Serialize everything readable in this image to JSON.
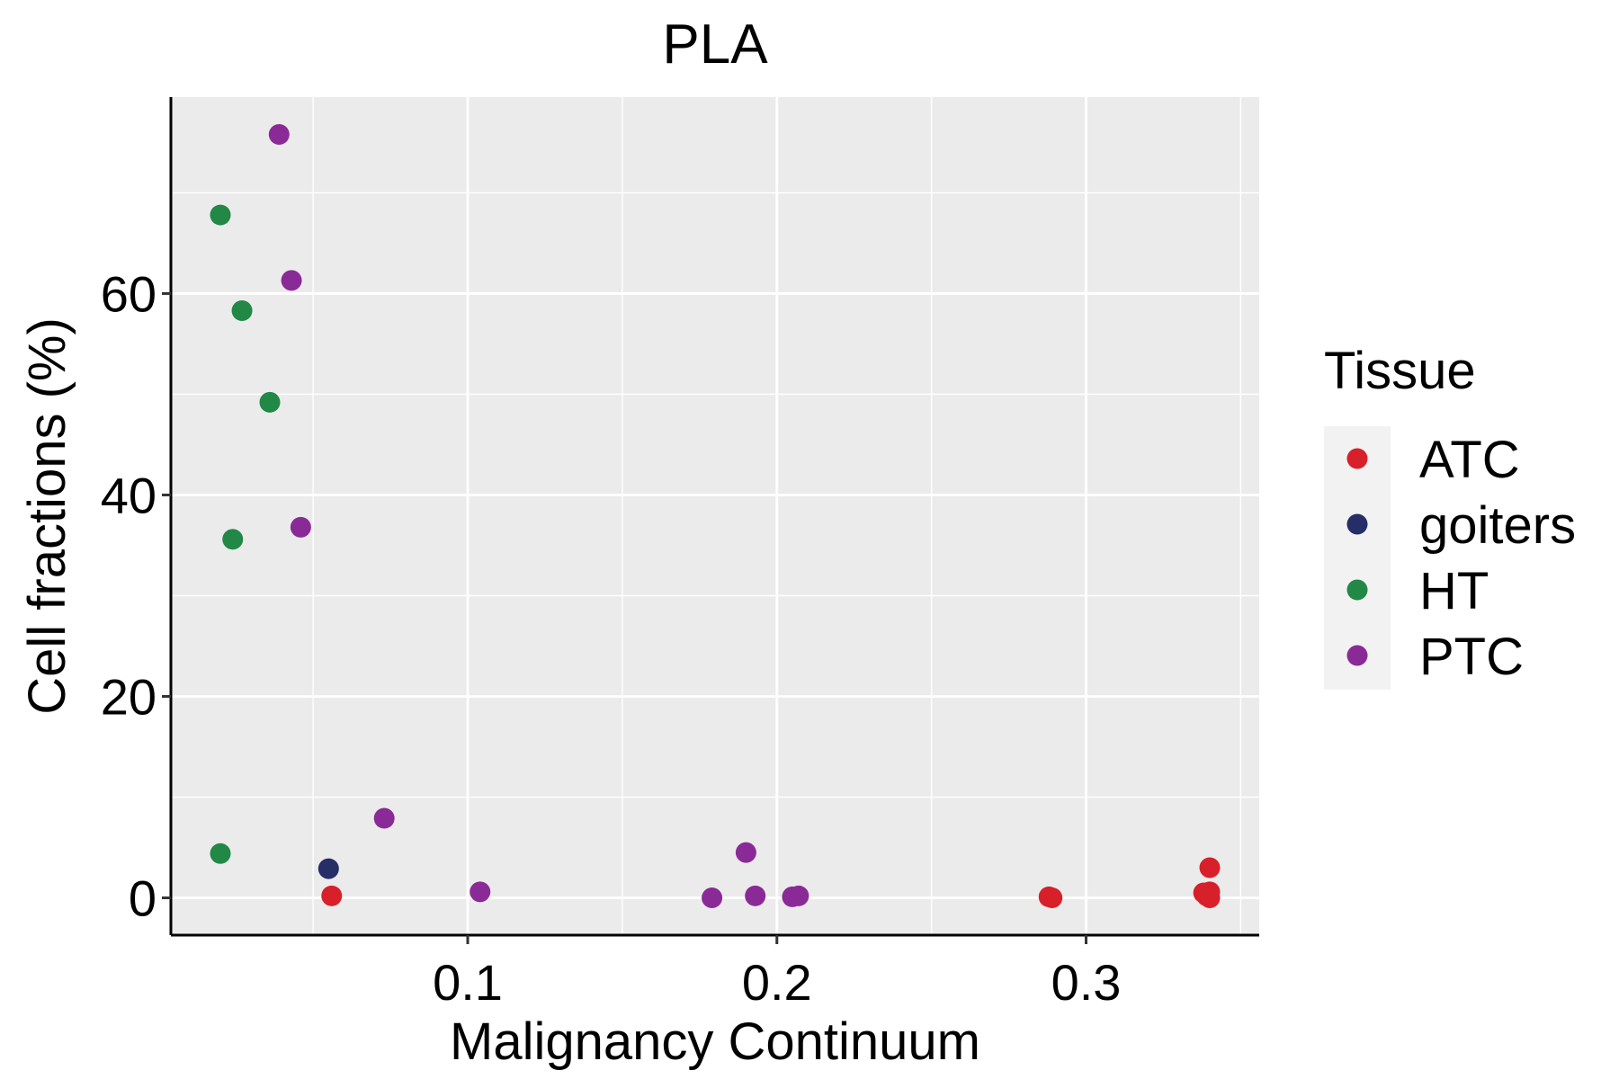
{
  "chart_data": {
    "type": "scatter",
    "title": "PLA",
    "xlabel": "Malignancy Continuum",
    "ylabel": "Cell fractions (%)",
    "xlim": [
      0.004,
      0.356
    ],
    "ylim": [
      -3.7,
      79.5
    ],
    "x_major_ticks": [
      0.1,
      0.2,
      0.3
    ],
    "x_tick_labels": [
      "0.1",
      "0.2",
      "0.3"
    ],
    "x_minor_ticks": [
      0.05,
      0.15,
      0.25,
      0.35
    ],
    "y_major_ticks": [
      0,
      20,
      40,
      60
    ],
    "y_tick_labels": [
      "0",
      "20",
      "40",
      "60"
    ],
    "y_minor_ticks": [
      10,
      30,
      50,
      70
    ],
    "grid": true,
    "legend": {
      "title": "Tissue",
      "position": "right",
      "entries": [
        "ATC",
        "goiters",
        "HT",
        "PTC"
      ]
    },
    "colors": {
      "ATC": "#D7202A",
      "goiters": "#252E66",
      "HT": "#218846",
      "PTC": "#8A2A97",
      "panel_bg": "#EBEBEB",
      "grid": "#FFFFFF",
      "axis": "#000000"
    },
    "series": [
      {
        "name": "ATC",
        "points": [
          {
            "x": 0.056,
            "y": 0.2
          },
          {
            "x": 0.288,
            "y": 0.1
          },
          {
            "x": 0.289,
            "y": 0.0
          },
          {
            "x": 0.34,
            "y": 3.0
          },
          {
            "x": 0.34,
            "y": 0.6
          },
          {
            "x": 0.338,
            "y": 0.5
          },
          {
            "x": 0.339,
            "y": 0.2
          },
          {
            "x": 0.34,
            "y": 0.0
          }
        ]
      },
      {
        "name": "goiters",
        "points": [
          {
            "x": 0.055,
            "y": 2.9
          }
        ]
      },
      {
        "name": "HT",
        "points": [
          {
            "x": 0.02,
            "y": 67.8
          },
          {
            "x": 0.027,
            "y": 58.3
          },
          {
            "x": 0.036,
            "y": 49.2
          },
          {
            "x": 0.024,
            "y": 35.6
          },
          {
            "x": 0.02,
            "y": 4.4
          }
        ]
      },
      {
        "name": "PTC",
        "points": [
          {
            "x": 0.039,
            "y": 75.8
          },
          {
            "x": 0.043,
            "y": 61.3
          },
          {
            "x": 0.046,
            "y": 36.8
          },
          {
            "x": 0.073,
            "y": 7.9
          },
          {
            "x": 0.104,
            "y": 0.6
          },
          {
            "x": 0.179,
            "y": 0.0
          },
          {
            "x": 0.19,
            "y": 4.5
          },
          {
            "x": 0.193,
            "y": 0.2
          },
          {
            "x": 0.205,
            "y": 0.1
          },
          {
            "x": 0.207,
            "y": 0.2
          }
        ]
      }
    ]
  }
}
